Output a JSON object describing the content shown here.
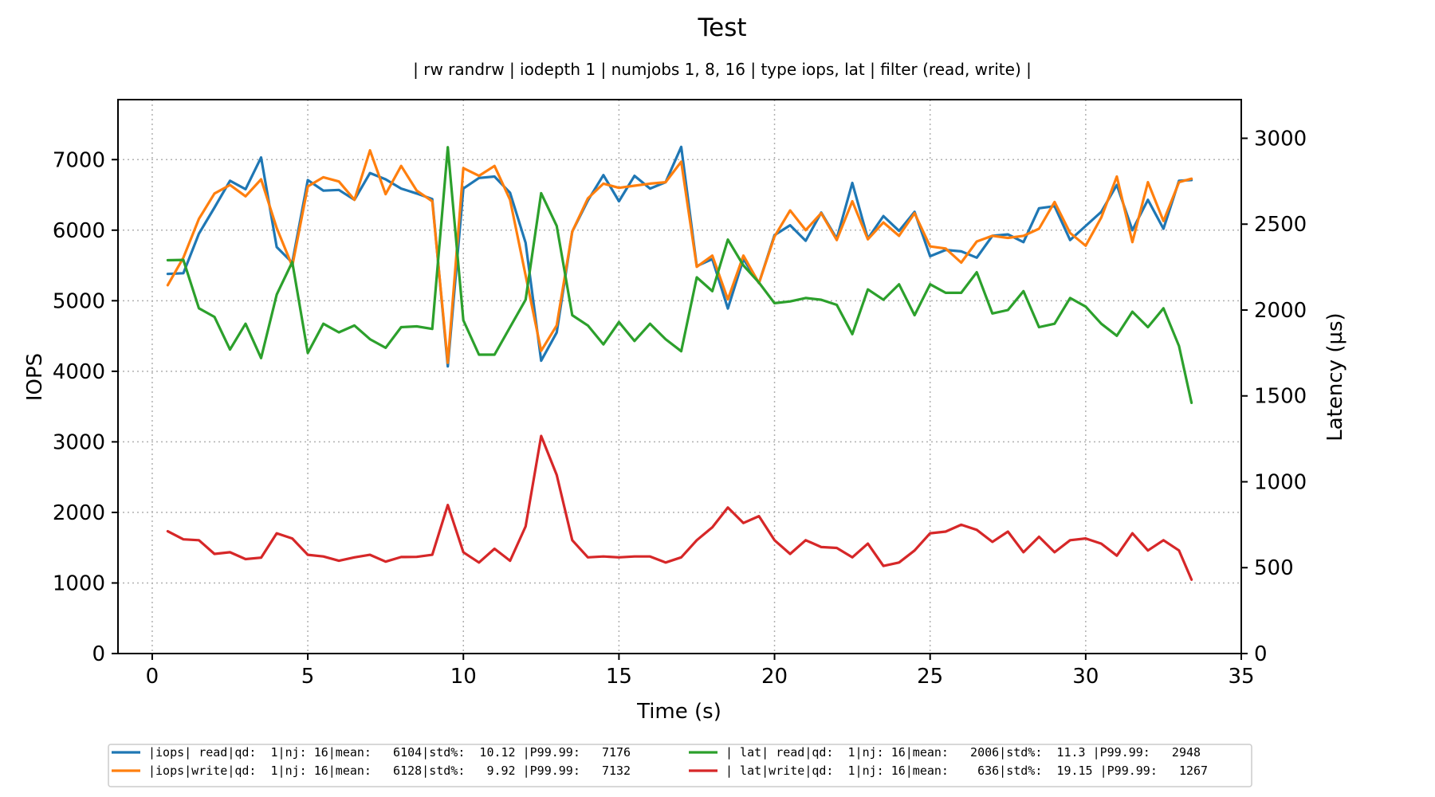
{
  "chart_data": {
    "type": "line",
    "title": "Test",
    "subtitle": "| rw randrw | iodepth 1 | numjobs 1, 8, 16 | type iops, lat | filter (read, write) |",
    "xlabel": "Time (s)",
    "ylabel": "IOPS",
    "y2label": "Latency (µs)",
    "xlim": [
      -1.1,
      35
    ],
    "ylim": [
      0,
      7850
    ],
    "y2lim": [
      0,
      3225
    ],
    "xticks": [
      0,
      5,
      10,
      15,
      20,
      25,
      30,
      35
    ],
    "yticks": [
      0,
      1000,
      2000,
      3000,
      4000,
      5000,
      6000,
      7000
    ],
    "y2ticks": [
      0,
      500,
      1000,
      1500,
      2000,
      2500,
      3000
    ],
    "grid": true,
    "legend_position": "bottom-center",
    "x": [
      0.5,
      1.0,
      1.5,
      2.0,
      2.5,
      3.0,
      3.5,
      4.0,
      4.5,
      5.0,
      5.5,
      6.0,
      6.5,
      7.0,
      7.5,
      8.0,
      8.5,
      9.0,
      9.5,
      10.0,
      10.5,
      11.0,
      11.5,
      12.0,
      12.5,
      13.0,
      13.5,
      14.0,
      14.5,
      15.0,
      15.5,
      16.0,
      16.5,
      17.0,
      17.5,
      18.0,
      18.5,
      19.0,
      19.5,
      20.0,
      20.5,
      21.0,
      21.5,
      22.0,
      22.5,
      23.0,
      23.5,
      24.0,
      24.5,
      25.0,
      25.5,
      26.0,
      26.5,
      27.0,
      27.5,
      28.0,
      28.5,
      29.0,
      29.5,
      30.0,
      30.5,
      31.0,
      31.5,
      32.0,
      32.5,
      33.0,
      33.4
    ],
    "series": [
      {
        "name": "|iops| read|qd:  1|nj: 16|mean:   6104|std%:  10.12 |P99.99:   7176",
        "axis": "left",
        "color": "#1f77b4",
        "values": [
          5380,
          5390,
          5950,
          6320,
          6700,
          6580,
          7030,
          5760,
          5540,
          6710,
          6560,
          6570,
          6430,
          6810,
          6720,
          6590,
          6520,
          6440,
          4070,
          6590,
          6740,
          6760,
          6530,
          5820,
          4150,
          4550,
          5980,
          6420,
          6780,
          6410,
          6770,
          6590,
          6680,
          7180,
          5490,
          5590,
          4890,
          5590,
          5250,
          5930,
          6070,
          5850,
          6250,
          5880,
          6670,
          5880,
          6200,
          5990,
          6260,
          5630,
          5720,
          5700,
          5610,
          5920,
          5940,
          5830,
          6310,
          6340,
          5860,
          6060,
          6260,
          6640,
          6000,
          6430,
          6020,
          6700,
          6710
        ]
      },
      {
        "name": "|iops|write|qd:  1|nj: 16|mean:   6128|std%:   9.92 |P99.99:   7132",
        "axis": "left",
        "color": "#ff7f0e",
        "values": [
          5220,
          5610,
          6160,
          6520,
          6640,
          6480,
          6720,
          6030,
          5490,
          6620,
          6750,
          6690,
          6430,
          7130,
          6510,
          6910,
          6560,
          6410,
          4120,
          6880,
          6770,
          6910,
          6430,
          5360,
          4290,
          4650,
          5980,
          6450,
          6660,
          6600,
          6630,
          6660,
          6680,
          6970,
          5480,
          5640,
          5020,
          5640,
          5250,
          5910,
          6280,
          6000,
          6240,
          5860,
          6410,
          5870,
          6110,
          5920,
          6240,
          5770,
          5740,
          5540,
          5840,
          5920,
          5890,
          5920,
          6020,
          6400,
          5960,
          5780,
          6180,
          6760,
          5830,
          6680,
          6130,
          6680,
          6730
        ]
      },
      {
        "name": "| lat| read|qd:  1|nj: 16|mean:   2006|std%:  11.3 |P99.99:   2948",
        "axis": "right",
        "color": "#2ca02c",
        "values": [
          2290,
          2292,
          2010,
          1960,
          1770,
          1920,
          1720,
          2090,
          2280,
          1750,
          1920,
          1870,
          1910,
          1830,
          1780,
          1900,
          1905,
          1890,
          2948,
          1940,
          1740,
          1740,
          1900,
          2060,
          2680,
          2490,
          1970,
          1910,
          1800,
          1930,
          1820,
          1920,
          1830,
          1760,
          2190,
          2110,
          2410,
          2260,
          2160,
          2040,
          2050,
          2070,
          2060,
          2030,
          1860,
          2120,
          2060,
          2150,
          1970,
          2150,
          2100,
          2100,
          2220,
          1980,
          2000,
          2110,
          1900,
          1920,
          2070,
          2020,
          1920,
          1850,
          1990,
          1900,
          2010,
          1790,
          1460
        ]
      },
      {
        "name": "| lat|write|qd:  1|nj: 16|mean:    636|std%:  19.15 |P99.99:   1267",
        "axis": "right",
        "color": "#d62728",
        "values": [
          712,
          665,
          660,
          580,
          590,
          550,
          558,
          700,
          670,
          575,
          565,
          540,
          560,
          575,
          535,
          562,
          563,
          575,
          865,
          590,
          530,
          610,
          540,
          740,
          1267,
          1040,
          660,
          560,
          565,
          560,
          565,
          565,
          530,
          560,
          660,
          735,
          850,
          760,
          800,
          660,
          580,
          660,
          620,
          615,
          560,
          640,
          510,
          530,
          600,
          700,
          710,
          750,
          720,
          650,
          710,
          590,
          680,
          590,
          660,
          670,
          640,
          570,
          700,
          600,
          660,
          600,
          430
        ]
      }
    ]
  }
}
